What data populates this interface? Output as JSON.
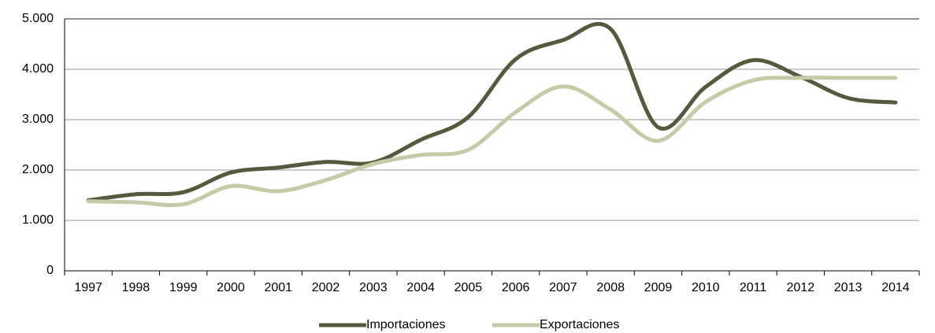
{
  "chart_data": {
    "type": "line",
    "categories": [
      "1997",
      "1998",
      "1999",
      "2000",
      "2001",
      "2002",
      "2003",
      "2004",
      "2005",
      "2006",
      "2007",
      "2008",
      "2009",
      "2010",
      "2011",
      "2012",
      "2013",
      "2014"
    ],
    "series": [
      {
        "name": "Importaciones",
        "color": "#535a3d",
        "values": [
          1400,
          1520,
          1560,
          1950,
          2050,
          2160,
          2150,
          2600,
          3050,
          4200,
          4580,
          4800,
          2850,
          3650,
          4180,
          3850,
          3430,
          3340
        ]
      },
      {
        "name": "Exportaciones",
        "color": "#c6caa6",
        "values": [
          1380,
          1360,
          1320,
          1680,
          1580,
          1800,
          2120,
          2300,
          2400,
          3150,
          3660,
          3200,
          2580,
          3350,
          3780,
          3830,
          3830,
          3830
        ]
      }
    ],
    "ylim": [
      0,
      5000
    ],
    "yticks": [
      0,
      {
        "value": 1000,
        "label": "1.000"
      },
      {
        "value": 2000,
        "label": "2.000"
      },
      {
        "value": 3000,
        "label": "3.000"
      },
      {
        "value": 4000,
        "label": "4.000"
      },
      {
        "value": 5000,
        "label": "5.000"
      }
    ],
    "grid": true,
    "legend": "bottom"
  }
}
